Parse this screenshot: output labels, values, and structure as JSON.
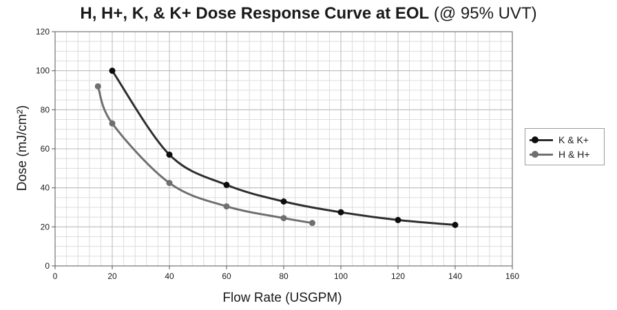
{
  "chart_data": {
    "type": "line",
    "title": "H, H+, K, & K+ Dose Response Curve at EOL",
    "subtitle": "(@ 95% UVT)",
    "xlabel": "Flow Rate (USGPM)",
    "ylabel": "Dose (mJ/cm²)",
    "xlim": [
      0,
      160
    ],
    "ylim": [
      0,
      120
    ],
    "xticks": [
      0,
      20,
      40,
      60,
      80,
      100,
      120,
      140,
      160
    ],
    "yticks": [
      0,
      20,
      40,
      60,
      80,
      100,
      120
    ],
    "grid": true,
    "legend_position": "right",
    "series": [
      {
        "name": "K & K+",
        "color": "#2e2e2e",
        "marker_color": "#0d0d0d",
        "x": [
          20,
          40,
          60,
          80,
          100,
          120,
          140
        ],
        "y": [
          100,
          57,
          41.5,
          33,
          27.5,
          23.5,
          21
        ]
      },
      {
        "name": "H & H+",
        "color": "#6f6f6f",
        "marker_color": "#6f6f6f",
        "x": [
          15,
          20,
          40,
          60,
          80,
          90
        ],
        "y": [
          92,
          73,
          42.5,
          30.5,
          24.5,
          22
        ]
      }
    ]
  }
}
